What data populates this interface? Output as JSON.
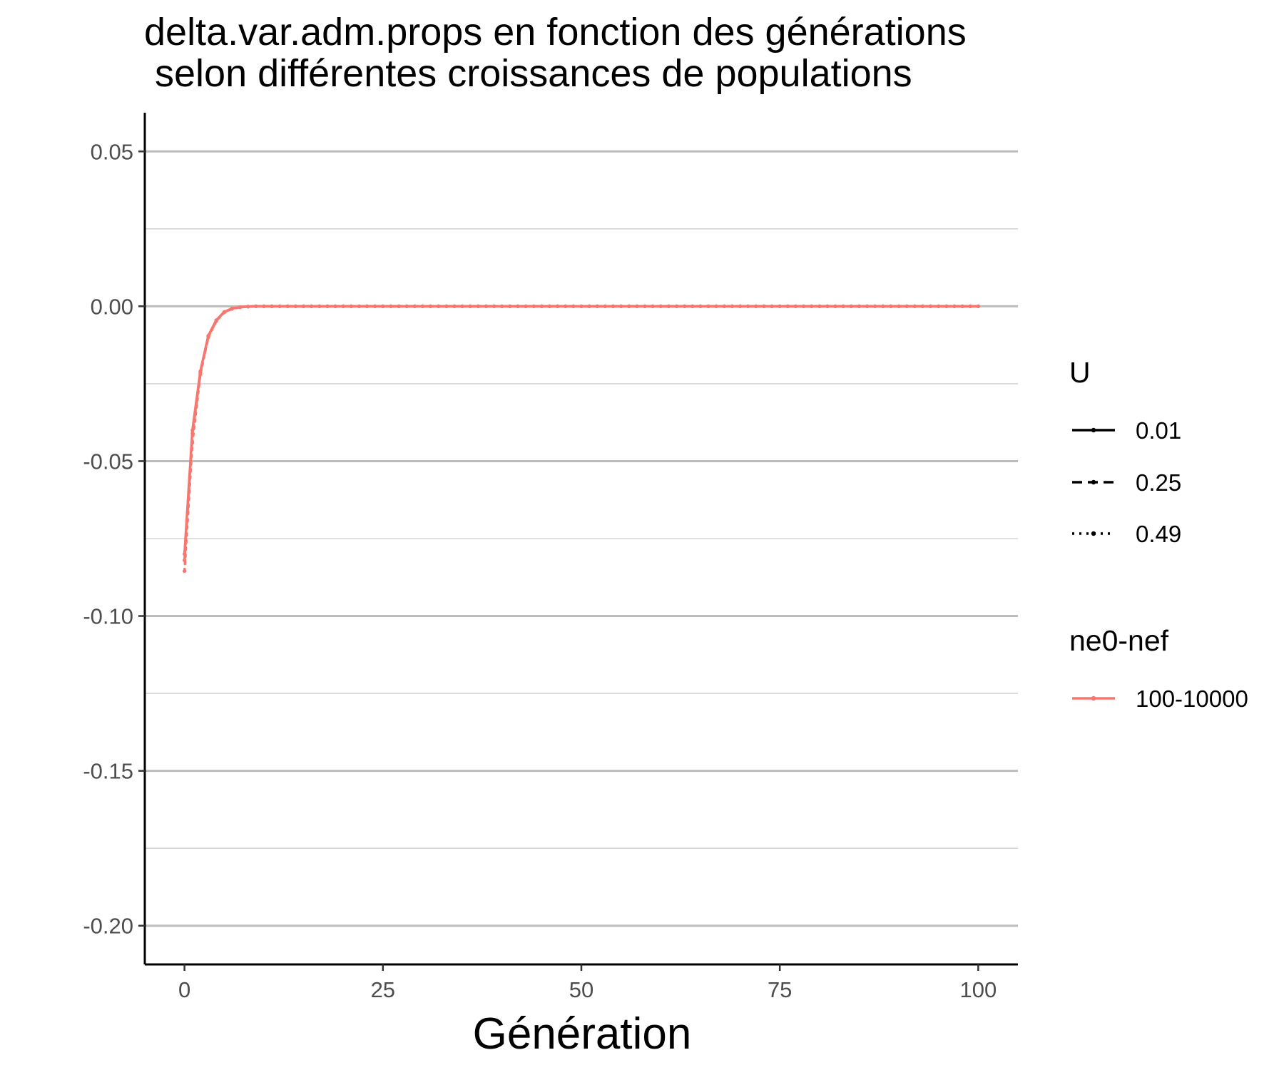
{
  "chart_data": {
    "type": "line",
    "title_lines": [
      "delta.var.adm.props en fonction des générations",
      " selon différentes croissances de populations"
    ],
    "xlabel": "Génération",
    "ylabel": "",
    "xlim": [
      -5,
      105
    ],
    "ylim": [
      -0.2125,
      0.0625
    ],
    "x_ticks": [
      0,
      25,
      50,
      75,
      100
    ],
    "x_tick_labels": [
      "0",
      "25",
      "50",
      "75",
      "100"
    ],
    "y_ticks": [
      0.05,
      0.0,
      -0.05,
      -0.1,
      -0.15,
      -0.2
    ],
    "y_tick_labels": [
      "0.05",
      "0.00",
      "-0.05",
      "-0.10",
      "-0.15",
      "-0.20"
    ],
    "y_minor_ticks": [
      0.025,
      -0.025,
      -0.075,
      -0.125,
      -0.175
    ],
    "grid": true,
    "legend_position": "right",
    "legends": [
      {
        "title": "U",
        "items": [
          {
            "label": "0.01",
            "linetype": "solid"
          },
          {
            "label": "0.25",
            "linetype": "dashed"
          },
          {
            "label": "0.49",
            "linetype": "dotted"
          }
        ]
      },
      {
        "title": "ne0-nef",
        "items": [
          {
            "label": "100-10000",
            "color": "#F8766D"
          }
        ]
      }
    ],
    "series": [
      {
        "U": "0.01",
        "group": "100-10000",
        "linetype": "solid",
        "color": "#F8766D",
        "x": [
          0,
          1,
          2,
          3,
          4,
          5,
          6,
          7,
          8,
          9,
          10,
          15,
          20,
          30,
          40,
          50,
          60,
          70,
          80,
          90,
          100
        ],
        "y": [
          -0.08,
          -0.04,
          -0.021,
          -0.0095,
          -0.0045,
          -0.0018,
          -0.0007,
          -0.0003,
          -0.0001,
          0.0,
          0.0,
          0.0,
          0.0,
          0.0,
          0.0,
          0.0,
          0.0,
          0.0,
          0.0,
          0.0,
          0.0
        ]
      },
      {
        "U": "0.25",
        "group": "100-10000",
        "linetype": "dashed",
        "color": "#F8766D",
        "x": [
          0,
          1,
          2,
          3,
          4,
          5,
          6,
          7,
          8,
          9,
          10,
          15,
          20,
          30,
          40,
          50,
          60,
          70,
          80,
          90,
          100
        ],
        "y": [
          -0.082,
          -0.041,
          -0.0215,
          -0.0098,
          -0.0047,
          -0.0019,
          -0.0008,
          -0.0003,
          -0.0001,
          0.0,
          0.0,
          0.0,
          0.0,
          0.0,
          0.0,
          0.0,
          0.0,
          0.0,
          0.0,
          0.0,
          0.0
        ]
      },
      {
        "U": "0.49",
        "group": "100-10000",
        "linetype": "dotted",
        "color": "#F8766D",
        "x": [
          0,
          1,
          2,
          3,
          4,
          5,
          6,
          7,
          8,
          9,
          10,
          15,
          20,
          30,
          40,
          50,
          60,
          70,
          80,
          90,
          100
        ],
        "y": [
          -0.0855,
          -0.044,
          -0.022,
          -0.01,
          -0.0048,
          -0.002,
          -0.0008,
          -0.0003,
          -0.0001,
          0.0,
          0.0,
          0.0,
          0.0,
          0.0,
          0.0,
          0.0,
          0.0,
          0.0,
          0.0,
          0.0,
          0.0
        ]
      }
    ]
  }
}
